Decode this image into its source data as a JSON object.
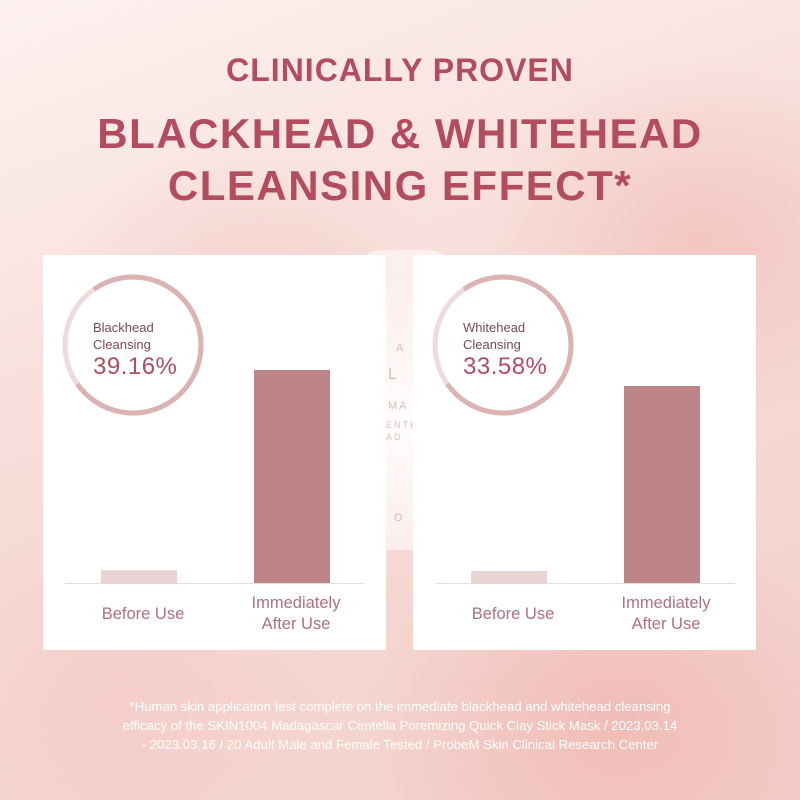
{
  "headline": {
    "line1": "CLINICALLY PROVEN",
    "line2": "BLACKHEAD & WHITEHEAD",
    "line3": "CLEANSING EFFECT*"
  },
  "colors": {
    "accent": "#b24c5e",
    "bar_after": "#bd8487",
    "bar_before": "#ead3d3",
    "ring_track": "#dcb3b3"
  },
  "chart_data": [
    {
      "type": "bar",
      "categories": [
        "Before Use",
        "Immediately After Use"
      ],
      "values": [
        6,
        100
      ],
      "annotation_label": "Blackhead Cleansing",
      "annotation_value": "39.16%",
      "ring_fraction": 0.75
    },
    {
      "type": "bar",
      "categories": [
        "Before Use",
        "Immediately After Use"
      ],
      "values": [
        6,
        100
      ],
      "annotation_label": "Whitehead Cleansing",
      "annotation_value": "33.58%",
      "ring_fraction": 0.75
    }
  ],
  "labels": {
    "left": {
      "ring_line1": "Blackhead",
      "ring_line2": "Cleansing",
      "ring_value": "39.16%",
      "cat1": "Before Use",
      "cat2_line1": "Immediately",
      "cat2_line2": "After Use"
    },
    "right": {
      "ring_line1": "Whitehead",
      "ring_line2": "Cleansing",
      "ring_value": "33.58%",
      "cat1": "Before Use",
      "cat2_line1": "Immediately",
      "cat2_line2": "After Use"
    }
  },
  "background_text": {
    "t1": "A",
    "t2": "L",
    "t3": "MA",
    "t4": "ENTEL",
    "t5": "AD",
    "t6": "O"
  },
  "footnote": {
    "line1": "*Human skin application test complete on the immediate blackhead and whitehead cleansing",
    "line2": "efficacy of the SKIN1004 Madagascar Centella Poremizing Quick Clay Stick Mask / 2023.03.14",
    "line3": "- 2023.03.16 / 20 Adult Male and Female Tested / ProbeM Skin Clinical Research Center"
  }
}
